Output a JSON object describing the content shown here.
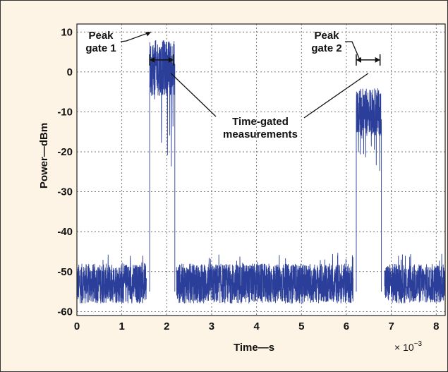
{
  "chart_data": {
    "type": "line",
    "title": "",
    "xlabel": "Time—s",
    "ylabel": "Power—dBm",
    "x_scale_label": "× 10",
    "x_scale_exponent": "−3",
    "xlim": [
      0,
      8.2
    ],
    "ylim": [
      -61,
      12
    ],
    "x_ticks": [
      "0",
      "1",
      "2",
      "3",
      "4",
      "5",
      "6",
      "7",
      "8"
    ],
    "y_ticks": [
      "10",
      "0",
      "-10",
      "-20",
      "-30",
      "-40",
      "-50",
      "-60"
    ],
    "grid": true,
    "series": [
      {
        "color": "#2b3f9a",
        "segments": [
          {
            "kind": "noise",
            "x_start": 0.0,
            "x_end": 1.55,
            "level": -53,
            "spread": 5
          },
          {
            "kind": "pulse",
            "x_start": 1.62,
            "x_end": 2.18,
            "level": 1,
            "spread": 7,
            "dips_to": -24
          },
          {
            "kind": "noise",
            "x_start": 2.22,
            "x_end": 6.15,
            "level": -53,
            "spread": 5
          },
          {
            "kind": "pulse",
            "x_start": 6.22,
            "x_end": 6.78,
            "level": -10,
            "spread": 6,
            "dips_to": -27
          },
          {
            "kind": "noise",
            "x_start": 6.85,
            "x_end": 8.2,
            "level": -53,
            "spread": 5
          }
        ]
      }
    ],
    "annotations": [
      {
        "text": [
          "Peak",
          "gate 1"
        ],
        "points_to": {
          "x": 1.65,
          "y": 10
        }
      },
      {
        "text": [
          "Peak",
          "gate 2"
        ],
        "points_to": {
          "x": 6.3,
          "y": 3
        }
      },
      {
        "text": [
          "Time-gated",
          "measurements"
        ],
        "points_to": [
          {
            "x": 2.0,
            "y": 0
          },
          {
            "x": 6.55,
            "y": 0
          }
        ]
      }
    ],
    "gate_markers": [
      {
        "x_start": 1.62,
        "x_end": 2.15,
        "y": 3
      },
      {
        "x_start": 6.22,
        "x_end": 6.75,
        "y": 3
      }
    ]
  }
}
